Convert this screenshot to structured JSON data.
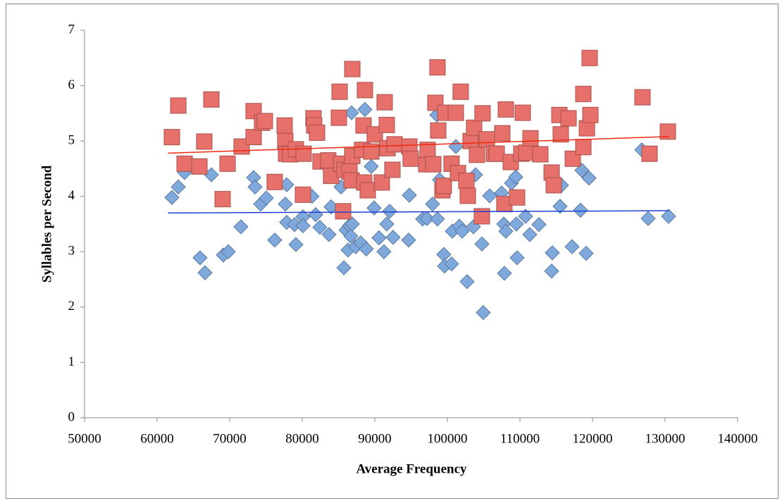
{
  "chart_data": {
    "type": "scatter",
    "x_label": "Average Frequency",
    "y_label": "Syllables per Second",
    "xlim": [
      50000,
      140000
    ],
    "xticks": [
      50000,
      60000,
      70000,
      80000,
      90000,
      100000,
      110000,
      120000,
      130000,
      140000
    ],
    "ylim": [
      0,
      7
    ],
    "yticks": [
      0,
      1,
      2,
      3,
      4,
      5,
      6,
      7
    ],
    "grid": false,
    "series": [
      {
        "color": "#7fa9dc",
        "marker": "diamond",
        "x": [
          62040,
          62920,
          63790,
          65920,
          66600,
          67480,
          69130,
          69810,
          71550,
          73300,
          73490,
          74270,
          75050,
          76210,
          77670,
          77860,
          77860,
          78930,
          79130,
          80100,
          80100,
          81340,
          81850,
          82430,
          83690,
          83980,
          85350,
          85740,
          86030,
          86310,
          86510,
          86700,
          86800,
          86900,
          87380,
          88060,
          88640,
          88830,
          89510,
          89900,
          90580,
          91260,
          91650,
          92040,
          92520,
          94660,
          94760,
          96600,
          97190,
          97960,
          98550,
          98640,
          98930,
          99510,
          99610,
          100580,
          100680,
          101170,
          101650,
          102040,
          102720,
          103590,
          103880,
          104760,
          104950,
          105830,
          107480,
          107770,
          107860,
          108060,
          108830,
          109510,
          109610,
          109420,
          110780,
          111360,
          112620,
          114370,
          114470,
          115530,
          115730,
          117190,
          118350,
          118540,
          119130,
          119520,
          126800,
          127670,
          130490
        ],
        "y": [
          3.98,
          4.17,
          4.43,
          2.89,
          2.62,
          4.39,
          2.94,
          3.0,
          3.45,
          4.34,
          4.17,
          3.86,
          3.97,
          3.21,
          3.86,
          3.53,
          4.21,
          3.49,
          3.13,
          3.63,
          3.47,
          4.0,
          3.67,
          3.44,
          3.31,
          3.81,
          4.17,
          2.71,
          3.39,
          3.03,
          3.47,
          3.28,
          5.51,
          3.5,
          3.09,
          3.16,
          5.57,
          3.05,
          4.54,
          3.79,
          3.25,
          3.0,
          3.5,
          3.73,
          3.26,
          3.21,
          4.02,
          3.59,
          3.6,
          3.86,
          5.47,
          3.59,
          4.3,
          2.95,
          2.74,
          2.78,
          3.37,
          4.9,
          3.46,
          3.37,
          2.46,
          3.45,
          4.39,
          3.14,
          1.9,
          4.01,
          4.06,
          3.5,
          2.61,
          3.37,
          4.24,
          3.5,
          2.89,
          4.35,
          3.64,
          3.31,
          3.49,
          2.65,
          2.98,
          3.82,
          4.2,
          3.09,
          3.75,
          4.47,
          2.97,
          4.33,
          4.84,
          3.6,
          3.64
        ],
        "trendline": {
          "color": "#1f3fd6",
          "x": [
            61500,
            130500
          ],
          "y": [
            3.7,
            3.74
          ]
        }
      },
      {
        "color": "#e8706a",
        "marker": "square",
        "x": [
          62040,
          62920,
          63790,
          65830,
          66500,
          67480,
          69030,
          69710,
          71650,
          73300,
          73300,
          74460,
          74850,
          76210,
          77570,
          77670,
          77770,
          78350,
          79130,
          80100,
          80190,
          81550,
          81650,
          82040,
          82520,
          83590,
          83980,
          85050,
          85150,
          85350,
          85640,
          85830,
          86510,
          86900,
          86900,
          86800,
          88250,
          88540,
          88640,
          88450,
          89030,
          89510,
          90000,
          90970,
          91360,
          91650,
          91750,
          92430,
          92720,
          94760,
          94950,
          97090,
          97280,
          98060,
          98350,
          98640,
          98740,
          99320,
          99510,
          99710,
          100580,
          101170,
          101460,
          101840,
          102620,
          102820,
          103200,
          103690,
          104080,
          104760,
          104850,
          105440,
          106410,
          106800,
          107570,
          107860,
          108060,
          108740,
          109610,
          110190,
          110390,
          110870,
          111460,
          112810,
          114370,
          114660,
          115440,
          115630,
          116700,
          117290,
          118740,
          118740,
          119230,
          119610,
          119710,
          126890,
          127860,
          130390
        ],
        "y": [
          5.07,
          5.64,
          4.59,
          4.54,
          4.99,
          5.75,
          3.95,
          4.59,
          4.9,
          5.54,
          5.07,
          5.33,
          5.36,
          4.26,
          5.28,
          5.0,
          4.77,
          4.76,
          4.85,
          4.03,
          4.77,
          5.41,
          5.28,
          5.15,
          4.63,
          4.65,
          4.37,
          5.42,
          5.89,
          4.59,
          3.73,
          4.48,
          4.45,
          6.3,
          4.73,
          4.29,
          4.84,
          4.25,
          5.92,
          5.28,
          4.11,
          4.81,
          5.12,
          4.25,
          5.7,
          5.29,
          4.87,
          4.48,
          4.94,
          4.9,
          4.68,
          4.58,
          4.84,
          4.58,
          5.69,
          6.33,
          5.19,
          4.11,
          4.19,
          5.51,
          4.59,
          5.51,
          4.42,
          5.89,
          4.28,
          4.01,
          5.0,
          5.24,
          4.75,
          3.64,
          5.5,
          5.03,
          4.77,
          4.77,
          5.14,
          3.86,
          5.57,
          4.62,
          3.98,
          4.77,
          5.51,
          4.79,
          5.05,
          4.76,
          4.43,
          4.2,
          5.47,
          5.12,
          5.41,
          4.68,
          5.85,
          4.89,
          5.23,
          6.5,
          5.47,
          5.79,
          4.77,
          5.17
        ],
        "trendline": {
          "color": "#ee2a10",
          "x": [
            61500,
            130500
          ],
          "y": [
            4.78,
            5.08
          ]
        }
      }
    ]
  }
}
